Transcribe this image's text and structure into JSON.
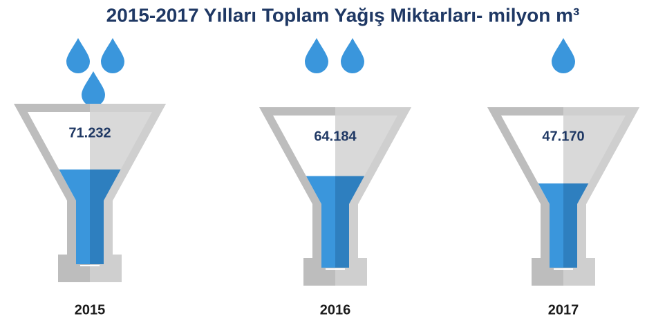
{
  "chart_data": {
    "type": "pictorial",
    "title": "2015-2017 Yılları Toplam Yağış Miktarları- milyon m³",
    "categories": [
      "2015",
      "2016",
      "2017"
    ],
    "values": [
      71232,
      64184,
      47170
    ],
    "value_labels": [
      "71.232",
      "64.184",
      "47.170"
    ],
    "color": "#3a96dc"
  }
}
